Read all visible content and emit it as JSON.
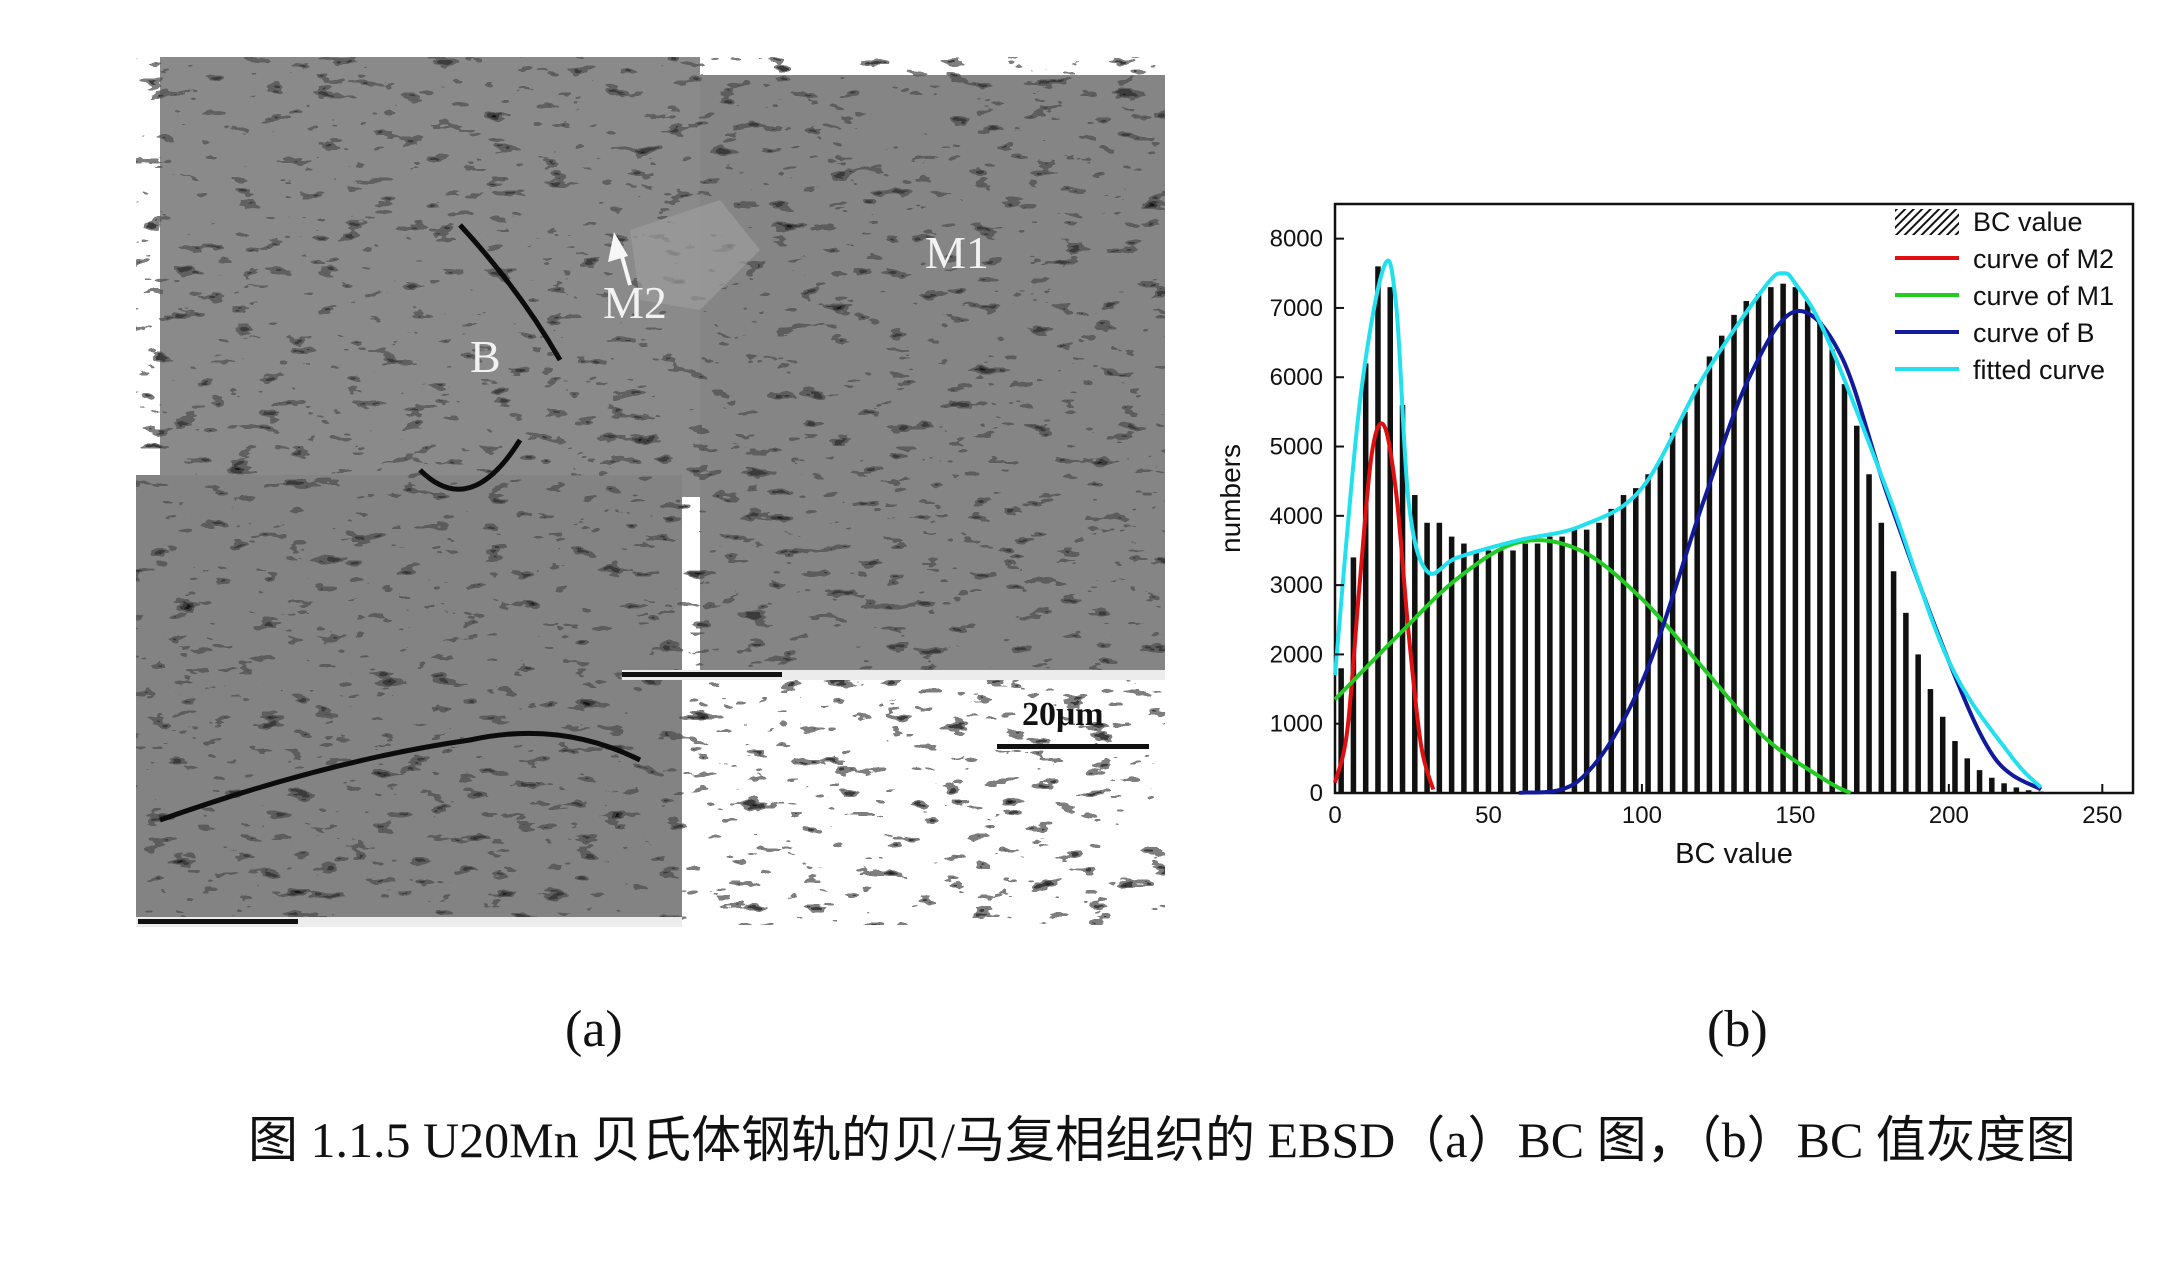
{
  "panel_a": {
    "labels": {
      "b": "B",
      "m2": "M2",
      "m1": "M1"
    },
    "scale_bar_label": "20μm",
    "panel_label": "(a)"
  },
  "panel_b": {
    "panel_label": "(b)"
  },
  "caption": "图 1.1.5 U20Mn 贝氏体钢轨的贝/马复相组织的 EBSD（a）BC 图，（b）BC 值灰度图",
  "colors": {
    "histogram": "#111111",
    "curve_m2": "#e01010",
    "curve_m1": "#22cc22",
    "curve_b": "#101a9a",
    "fitted": "#22e0ee"
  },
  "chart_data": {
    "type": "bar",
    "xlabel": "BC value",
    "ylabel": "numbers",
    "xlim": [
      0,
      260
    ],
    "ylim": [
      0,
      8500
    ],
    "xticks": [
      0,
      50,
      100,
      150,
      200,
      250
    ],
    "yticks": [
      0,
      1000,
      2000,
      3000,
      4000,
      5000,
      6000,
      7000,
      8000
    ],
    "grid": false,
    "legend_position": "top-right",
    "histogram": {
      "name": "BC value",
      "bins_x": [
        2,
        6,
        10,
        14,
        18,
        22,
        26,
        30,
        34,
        38,
        42,
        46,
        50,
        54,
        58,
        62,
        66,
        70,
        74,
        78,
        82,
        86,
        90,
        94,
        98,
        102,
        106,
        110,
        114,
        118,
        122,
        126,
        130,
        134,
        138,
        142,
        146,
        150,
        154,
        158,
        162,
        166,
        170,
        174,
        178,
        182,
        186,
        190,
        194,
        198,
        202,
        206,
        210,
        214,
        218,
        222,
        226,
        230,
        234
      ],
      "values": [
        1800,
        3400,
        6200,
        7600,
        7300,
        5600,
        4300,
        3900,
        3900,
        3700,
        3600,
        3500,
        3500,
        3500,
        3500,
        3600,
        3600,
        3700,
        3700,
        3800,
        3800,
        3900,
        4100,
        4300,
        4400,
        4600,
        4800,
        5200,
        5500,
        5900,
        6300,
        6600,
        6900,
        7100,
        7200,
        7300,
        7350,
        7300,
        7100,
        6800,
        6400,
        5900,
        5300,
        4600,
        3900,
        3200,
        2600,
        2000,
        1500,
        1100,
        750,
        500,
        330,
        220,
        140,
        80,
        40,
        20,
        10
      ]
    },
    "series": [
      {
        "name": "curve of M2",
        "x": [
          0,
          4,
          8,
          12,
          16,
          20,
          24,
          28,
          32
        ],
        "y": [
          150,
          900,
          3000,
          4900,
          5300,
          4300,
          2300,
          700,
          50
        ]
      },
      {
        "name": "curve of M1",
        "x": [
          0,
          20,
          40,
          60,
          80,
          100,
          120,
          140,
          160,
          168
        ],
        "y": [
          1350,
          2250,
          3100,
          3620,
          3500,
          2800,
          1800,
          800,
          180,
          0
        ]
      },
      {
        "name": "curve of B",
        "x": [
          60,
          80,
          100,
          120,
          135,
          150,
          165,
          180,
          200,
          215,
          230
        ],
        "y": [
          0,
          200,
          1600,
          4200,
          6000,
          6950,
          6300,
          4300,
          1900,
          500,
          50
        ]
      },
      {
        "name": "fitted curve",
        "x": [
          0,
          8,
          16,
          20,
          24,
          30,
          40,
          60,
          80,
          100,
          120,
          140,
          146,
          150,
          160,
          180,
          200,
          220,
          230
        ],
        "y": [
          1700,
          5600,
          7600,
          7000,
          4200,
          3200,
          3400,
          3650,
          3850,
          4400,
          6000,
          7300,
          7500,
          7350,
          6600,
          4350,
          1900,
          550,
          80
        ]
      }
    ]
  }
}
